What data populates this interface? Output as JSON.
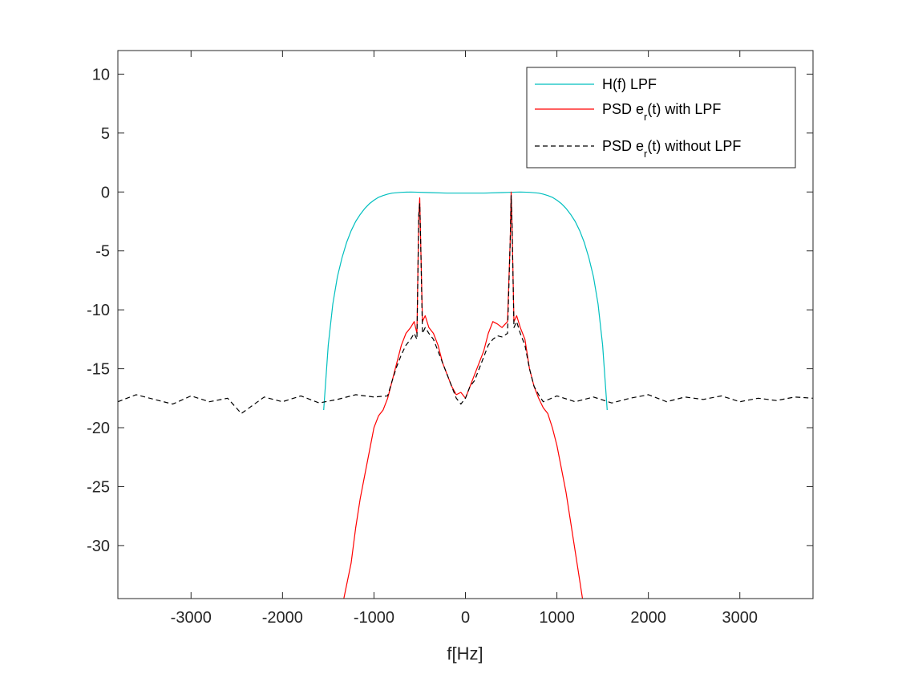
{
  "chart_data": {
    "type": "line",
    "xlabel": "f[Hz]",
    "ylabel": "",
    "title": "",
    "xlim": [
      -3800,
      3800
    ],
    "ylim": [
      -34.5,
      12
    ],
    "x_ticks": [
      -3000,
      -2000,
      -1000,
      0,
      1000,
      2000,
      3000
    ],
    "y_ticks": [
      10,
      5,
      0,
      -5,
      -10,
      -15,
      -20,
      -25,
      -30
    ],
    "grid": false,
    "legend_position": "top-right",
    "legend": [
      {
        "prefix": "H(f) LPF",
        "sub": "",
        "suffix": ""
      },
      {
        "prefix": "PSD e",
        "sub": "r",
        "suffix": "(t) with LPF"
      },
      {
        "prefix": "PSD e",
        "sub": "r",
        "suffix": "(t) without LPF"
      }
    ],
    "series": [
      {
        "name": "H(f) LPF",
        "color": "#00bfbf",
        "dash": "solid",
        "points": [
          [
            -1550,
            -18.5
          ],
          [
            -1500,
            -13
          ],
          [
            -1450,
            -9.5
          ],
          [
            -1400,
            -7.2
          ],
          [
            -1350,
            -5.6
          ],
          [
            -1300,
            -4.3
          ],
          [
            -1250,
            -3.3
          ],
          [
            -1200,
            -2.5
          ],
          [
            -1150,
            -1.9
          ],
          [
            -1100,
            -1.4
          ],
          [
            -1050,
            -1.0
          ],
          [
            -1000,
            -0.7
          ],
          [
            -950,
            -0.45
          ],
          [
            -900,
            -0.3
          ],
          [
            -850,
            -0.18
          ],
          [
            -800,
            -0.1
          ],
          [
            -700,
            -0.03
          ],
          [
            -600,
            0
          ],
          [
            -400,
            -0.05
          ],
          [
            -200,
            -0.1
          ],
          [
            0,
            -0.1
          ],
          [
            200,
            -0.1
          ],
          [
            400,
            -0.05
          ],
          [
            600,
            0
          ],
          [
            700,
            -0.03
          ],
          [
            800,
            -0.1
          ],
          [
            850,
            -0.18
          ],
          [
            900,
            -0.3
          ],
          [
            950,
            -0.45
          ],
          [
            1000,
            -0.7
          ],
          [
            1050,
            -1.0
          ],
          [
            1100,
            -1.4
          ],
          [
            1150,
            -1.9
          ],
          [
            1200,
            -2.5
          ],
          [
            1250,
            -3.3
          ],
          [
            1300,
            -4.3
          ],
          [
            1350,
            -5.6
          ],
          [
            1400,
            -7.2
          ],
          [
            1450,
            -9.5
          ],
          [
            1500,
            -13
          ],
          [
            1550,
            -18.5
          ]
        ]
      },
      {
        "name": "PSD e_r(t) with LPF",
        "color": "#ff0000",
        "dash": "solid",
        "points": [
          [
            -1330,
            -34.5
          ],
          [
            -1250,
            -31.5
          ],
          [
            -1200,
            -28.5
          ],
          [
            -1150,
            -26
          ],
          [
            -1100,
            -24
          ],
          [
            -1050,
            -22
          ],
          [
            -1000,
            -20
          ],
          [
            -950,
            -19
          ],
          [
            -900,
            -18.5
          ],
          [
            -850,
            -17.5
          ],
          [
            -800,
            -16
          ],
          [
            -750,
            -14.5
          ],
          [
            -700,
            -13
          ],
          [
            -650,
            -12
          ],
          [
            -600,
            -11.5
          ],
          [
            -560,
            -11
          ],
          [
            -530,
            -12
          ],
          [
            -510,
            -2
          ],
          [
            -500,
            -0.5
          ],
          [
            -490,
            -4
          ],
          [
            -470,
            -11
          ],
          [
            -440,
            -10.5
          ],
          [
            -400,
            -11.5
          ],
          [
            -350,
            -12
          ],
          [
            -300,
            -13
          ],
          [
            -250,
            -14.5
          ],
          [
            -200,
            -15.5
          ],
          [
            -150,
            -16.5
          ],
          [
            -100,
            -17.2
          ],
          [
            -50,
            -17
          ],
          [
            0,
            -17.5
          ],
          [
            50,
            -16.5
          ],
          [
            100,
            -15.5
          ],
          [
            150,
            -14.5
          ],
          [
            200,
            -13.5
          ],
          [
            250,
            -12
          ],
          [
            300,
            -11
          ],
          [
            350,
            -11.2
          ],
          [
            400,
            -11.5
          ],
          [
            460,
            -11
          ],
          [
            490,
            -4
          ],
          [
            500,
            0
          ],
          [
            510,
            -3
          ],
          [
            530,
            -11
          ],
          [
            560,
            -10.5
          ],
          [
            600,
            -11.5
          ],
          [
            650,
            -12.5
          ],
          [
            700,
            -15
          ],
          [
            750,
            -16.5
          ],
          [
            800,
            -17.5
          ],
          [
            850,
            -18.3
          ],
          [
            900,
            -18.8
          ],
          [
            950,
            -20
          ],
          [
            1000,
            -21.5
          ],
          [
            1050,
            -23.5
          ],
          [
            1100,
            -25.5
          ],
          [
            1150,
            -28
          ],
          [
            1200,
            -30.5
          ],
          [
            1280,
            -34.5
          ]
        ]
      },
      {
        "name": "PSD e_r(t) without LPF",
        "color": "#000000",
        "dash": "dashed",
        "points": [
          [
            -3800,
            -17.8
          ],
          [
            -3600,
            -17.2
          ],
          [
            -3400,
            -17.6
          ],
          [
            -3200,
            -18
          ],
          [
            -3000,
            -17.3
          ],
          [
            -2800,
            -17.8
          ],
          [
            -2600,
            -17.5
          ],
          [
            -2450,
            -18.8
          ],
          [
            -2200,
            -17.4
          ],
          [
            -2000,
            -17.8
          ],
          [
            -1800,
            -17.3
          ],
          [
            -1600,
            -17.9
          ],
          [
            -1400,
            -17.6
          ],
          [
            -1200,
            -17.2
          ],
          [
            -1000,
            -17.4
          ],
          [
            -850,
            -17.3
          ],
          [
            -800,
            -16
          ],
          [
            -750,
            -14.8
          ],
          [
            -700,
            -13.8
          ],
          [
            -650,
            -13
          ],
          [
            -600,
            -12.5
          ],
          [
            -560,
            -12
          ],
          [
            -530,
            -12.5
          ],
          [
            -510,
            -2
          ],
          [
            -500,
            -1
          ],
          [
            -490,
            -4
          ],
          [
            -470,
            -12
          ],
          [
            -440,
            -11.5
          ],
          [
            -400,
            -12
          ],
          [
            -350,
            -12.5
          ],
          [
            -300,
            -13.5
          ],
          [
            -250,
            -14.5
          ],
          [
            -200,
            -15.5
          ],
          [
            -150,
            -16.5
          ],
          [
            -100,
            -17.5
          ],
          [
            -50,
            -18
          ],
          [
            0,
            -17.5
          ],
          [
            50,
            -16.5
          ],
          [
            100,
            -16
          ],
          [
            150,
            -15
          ],
          [
            200,
            -14
          ],
          [
            250,
            -13
          ],
          [
            300,
            -12.5
          ],
          [
            350,
            -12.2
          ],
          [
            400,
            -12.3
          ],
          [
            460,
            -12
          ],
          [
            490,
            -4
          ],
          [
            500,
            -0.3
          ],
          [
            510,
            -3
          ],
          [
            530,
            -11.5
          ],
          [
            560,
            -11
          ],
          [
            600,
            -12
          ],
          [
            650,
            -13
          ],
          [
            700,
            -15
          ],
          [
            750,
            -16.5
          ],
          [
            800,
            -17.2
          ],
          [
            850,
            -17.8
          ],
          [
            1000,
            -17.3
          ],
          [
            1200,
            -17.8
          ],
          [
            1400,
            -17.4
          ],
          [
            1600,
            -17.9
          ],
          [
            1800,
            -17.5
          ],
          [
            2000,
            -17.2
          ],
          [
            2200,
            -17.8
          ],
          [
            2400,
            -17.4
          ],
          [
            2600,
            -17.6
          ],
          [
            2800,
            -17.3
          ],
          [
            3000,
            -17.8
          ],
          [
            3200,
            -17.5
          ],
          [
            3400,
            -17.7
          ],
          [
            3600,
            -17.4
          ],
          [
            3800,
            -17.5
          ]
        ]
      }
    ]
  }
}
